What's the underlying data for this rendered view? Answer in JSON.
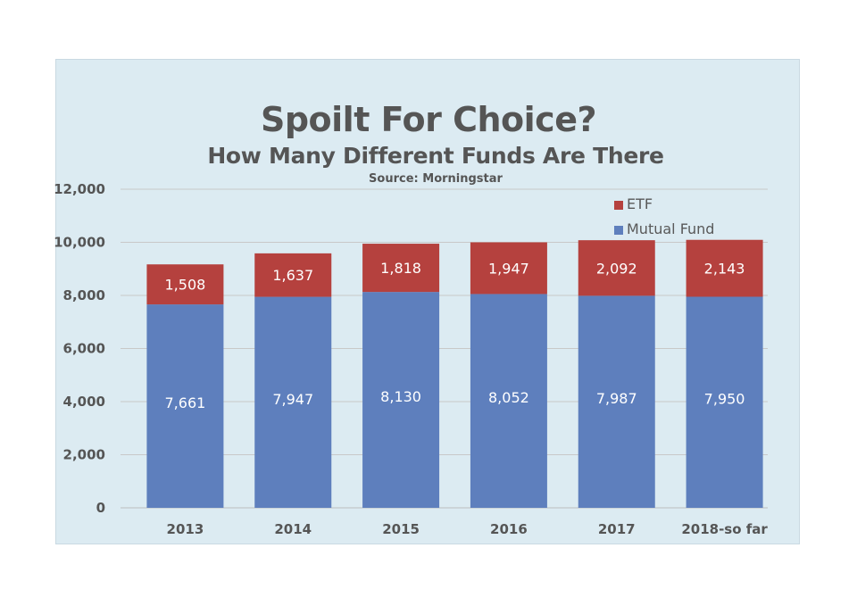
{
  "chart_data": {
    "type": "bar",
    "stacked": true,
    "title": "Spoilt For Choice?",
    "subtitle": "How Many Different Funds Are There",
    "source": "Source: Morningstar",
    "categories": [
      "2013",
      "2014",
      "2015",
      "2016",
      "2017",
      "2018-so far"
    ],
    "series": [
      {
        "name": "Mutual Fund",
        "color": "#5e7fbd",
        "values": [
          7661,
          7947,
          8130,
          8052,
          7987,
          7950
        ]
      },
      {
        "name": "ETF",
        "color": "#b5413e",
        "values": [
          1508,
          1637,
          1818,
          1947,
          2092,
          2143
        ]
      }
    ],
    "value_labels": {
      "Mutual Fund": [
        "7,661",
        "7,947",
        "8,130",
        "8,052",
        "7,987",
        "7,950"
      ],
      "ETF": [
        "1,508",
        "1,637",
        "1,818",
        "1,947",
        "2,092",
        "2,143"
      ]
    },
    "ylim": [
      0,
      12000
    ],
    "yticks": [
      0,
      2000,
      4000,
      6000,
      8000,
      10000,
      12000
    ],
    "ytick_labels": [
      "0",
      "2,000",
      "4,000",
      "6,000",
      "8,000",
      "10,000",
      "12,000"
    ],
    "grid": true,
    "legend_position": "top-right",
    "legend_order": [
      "ETF",
      "Mutual Fund"
    ]
  },
  "colors": {
    "panel_background": "#dcebf2",
    "text": "#555555",
    "gridline": "#c8c8c8"
  }
}
